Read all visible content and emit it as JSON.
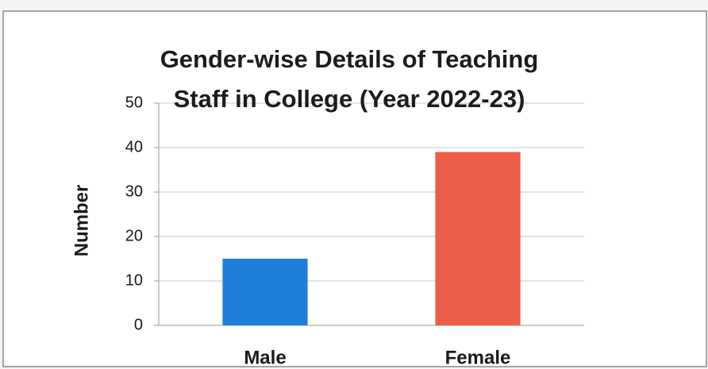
{
  "chart_data": {
    "type": "bar",
    "title": "Gender-wise Details of Teaching Staff in College (Year 2022-23)",
    "ylabel": "Number",
    "categories": [
      "Male",
      "Female"
    ],
    "values": [
      15,
      39
    ],
    "colors": [
      "#1e80da",
      "#ec5e48"
    ],
    "ylim": [
      0,
      50
    ],
    "yticks": [
      0,
      10,
      20,
      30,
      40,
      50
    ],
    "grid": true
  }
}
